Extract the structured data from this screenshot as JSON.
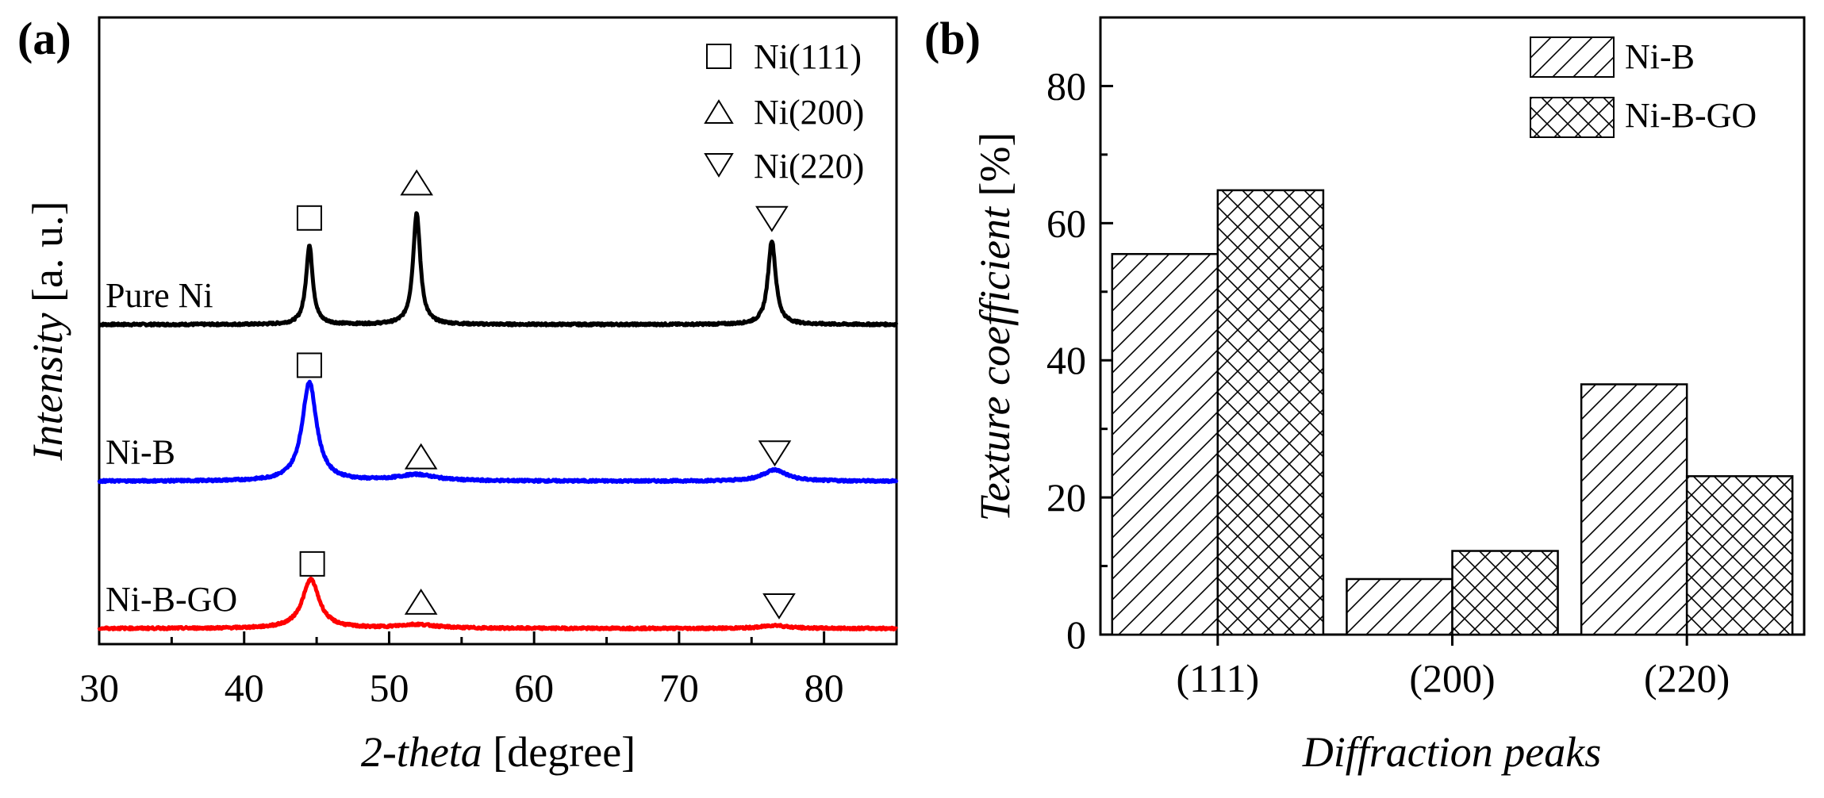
{
  "chart_data": [
    {
      "panel": "(a)",
      "type": "line",
      "xlabel_italic": "2-theta",
      "xlabel_unit": "[degree]",
      "ylabel_italic": "Intensity",
      "ylabel_unit": "[a. u.]",
      "xlim": [
        30,
        85
      ],
      "xticks": [
        30,
        40,
        50,
        60,
        70,
        80
      ],
      "ylim": [
        0,
        100
      ],
      "series": [
        {
          "name": "Pure Ni",
          "color": "#000000",
          "baseline": 51,
          "peaks": [
            {
              "x": 44.5,
              "height": 12.6,
              "width": 0.28
            },
            {
              "x": 51.9,
              "height": 17.8,
              "width": 0.3
            },
            {
              "x": 76.4,
              "height": 13.4,
              "width": 0.32
            }
          ],
          "markers": [
            {
              "symbol": "square",
              "x": 44.5,
              "y": 68
            },
            {
              "symbol": "triangle-up",
              "x": 51.9,
              "y": 73.5
            },
            {
              "symbol": "triangle-down",
              "x": 76.4,
              "y": 68
            }
          ]
        },
        {
          "name": "Ni-B",
          "color": "#0000ff",
          "baseline": 26,
          "peaks": [
            {
              "x": 44.5,
              "height": 15.8,
              "width": 0.6
            },
            {
              "x": 51.9,
              "height": 1.0,
              "width": 1.6
            },
            {
              "x": 76.6,
              "height": 1.8,
              "width": 1.0
            }
          ],
          "markers": [
            {
              "symbol": "square",
              "x": 44.5,
              "y": 44.5
            },
            {
              "symbol": "triangle-up",
              "x": 52.2,
              "y": 29.8
            },
            {
              "symbol": "triangle-down",
              "x": 76.6,
              "y": 30.6
            }
          ]
        },
        {
          "name": "Ni-B-GO",
          "color": "#ff0000",
          "baseline": 2.5,
          "peaks": [
            {
              "x": 44.6,
              "height": 7.8,
              "width": 0.7
            },
            {
              "x": 51.9,
              "height": 0.6,
              "width": 1.6
            },
            {
              "x": 76.6,
              "height": 0.5,
              "width": 1.0
            }
          ],
          "markers": [
            {
              "symbol": "square",
              "x": 44.7,
              "y": 12.8
            },
            {
              "symbol": "triangle-up",
              "x": 52.2,
              "y": 6.6
            },
            {
              "symbol": "triangle-down",
              "x": 76.9,
              "y": 6.2
            }
          ]
        }
      ],
      "legend": [
        {
          "symbol": "square",
          "label": "Ni(111)"
        },
        {
          "symbol": "triangle-up",
          "label": "Ni(200)"
        },
        {
          "symbol": "triangle-down",
          "label": "Ni(220)"
        }
      ],
      "legend_position": "top-right"
    },
    {
      "panel": "(b)",
      "type": "bar",
      "xlabel": "Diffraction peaks",
      "ylabel_italic": "Texture coefficient",
      "ylabel_unit": "[%]",
      "categories": [
        "(111)",
        "(200)",
        "(220)"
      ],
      "ylim": [
        0,
        90
      ],
      "yticks": [
        0,
        20,
        40,
        60,
        80
      ],
      "series": [
        {
          "name": "Ni-B",
          "pattern": "hatch",
          "values": [
            55.5,
            8.1,
            36.5
          ]
        },
        {
          "name": "Ni-B-GO",
          "pattern": "crosshatch",
          "values": [
            64.8,
            12.2,
            23.1
          ]
        }
      ],
      "legend_position": "top-right"
    }
  ]
}
